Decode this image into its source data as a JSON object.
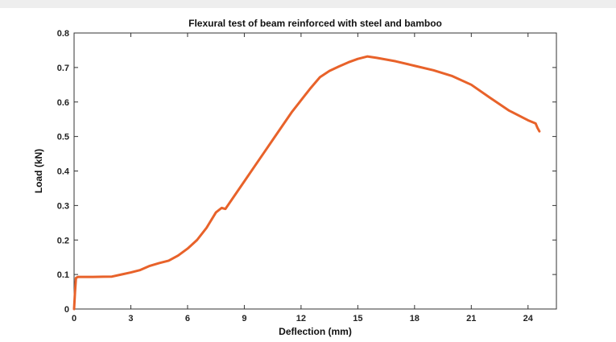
{
  "chart_data": {
    "type": "line",
    "title": "Flexural test of beam reinforced with steel and bamboo",
    "xlabel": "Deflection (mm)",
    "ylabel": "Load (kN)",
    "xlim": [
      0,
      25.5
    ],
    "ylim": [
      0,
      0.8
    ],
    "xticks": [
      0,
      3,
      6,
      9,
      12,
      15,
      18,
      21,
      24
    ],
    "xtick_labels": [
      "0",
      "3",
      "6",
      "9",
      "12",
      "15",
      "18",
      "21",
      "24"
    ],
    "yticks": [
      0,
      0.1,
      0.2,
      0.3,
      0.4,
      0.5,
      0.6,
      0.7,
      0.8
    ],
    "ytick_labels": [
      "0",
      "0.1",
      "0.2",
      "0.3",
      "0.4",
      "0.5",
      "0.6",
      "0.7",
      "0.8"
    ],
    "grid": false,
    "series": [
      {
        "color": "#E8622A",
        "x": [
          0,
          0.05,
          0.1,
          0.2,
          0.5,
          1.0,
          2.0,
          2.5,
          3.0,
          3.5,
          4.0,
          4.5,
          5.0,
          5.5,
          6.0,
          6.5,
          7.0,
          7.5,
          7.8,
          8.0,
          8.5,
          9.0,
          9.5,
          10.0,
          10.5,
          11.0,
          11.5,
          12.0,
          12.5,
          13.0,
          13.5,
          14.0,
          14.5,
          15.0,
          15.5,
          16.0,
          17.0,
          18.0,
          19.0,
          20.0,
          21.0,
          22.0,
          23.0,
          24.0,
          24.4,
          24.5,
          24.6
        ],
        "y": [
          0,
          0.05,
          0.09,
          0.093,
          0.093,
          0.093,
          0.094,
          0.1,
          0.106,
          0.113,
          0.125,
          0.133,
          0.14,
          0.155,
          0.175,
          0.2,
          0.235,
          0.28,
          0.293,
          0.29,
          0.33,
          0.37,
          0.41,
          0.45,
          0.49,
          0.53,
          0.57,
          0.605,
          0.64,
          0.672,
          0.69,
          0.703,
          0.715,
          0.725,
          0.732,
          0.728,
          0.718,
          0.705,
          0.692,
          0.675,
          0.65,
          0.612,
          0.575,
          0.547,
          0.538,
          0.525,
          0.515
        ]
      }
    ]
  }
}
